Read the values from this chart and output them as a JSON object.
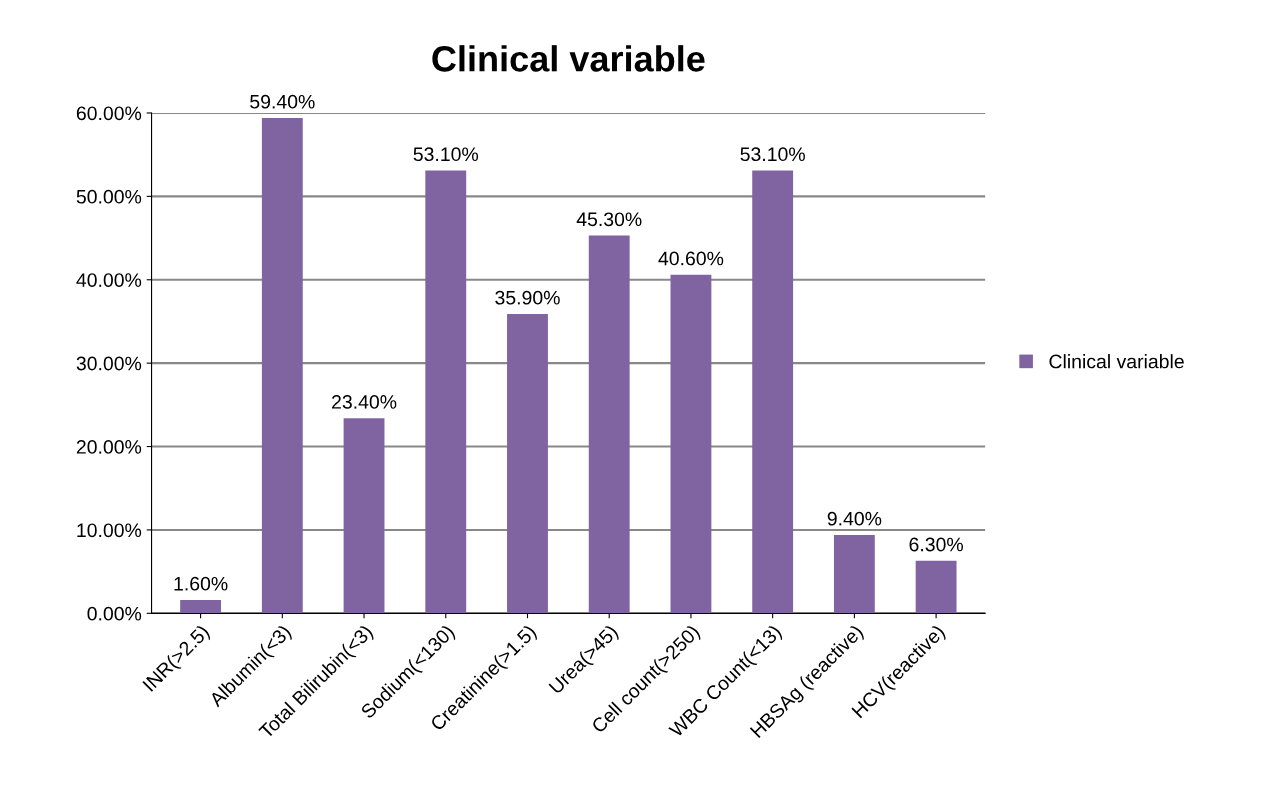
{
  "chart_data": {
    "type": "bar",
    "title": "Clinical variable",
    "categories": [
      "INR(>2.5)",
      "Albumin(<3)",
      "Total Bilirubin(<3)",
      "Sodium(<130)",
      "Creatinine(>1.5)",
      "Urea(>45)",
      "Cell count(>250)",
      "WBC Count(<13)",
      "HBSAg (reactive)",
      "HCV(reactive)"
    ],
    "series": [
      {
        "name": "Clinical variable",
        "color": "#8064a2",
        "values": [
          1.6,
          59.4,
          23.4,
          53.1,
          35.9,
          45.3,
          40.6,
          53.1,
          9.4,
          6.3
        ],
        "value_labels": [
          "1.60%",
          "59.40%",
          "23.40%",
          "53.10%",
          "35.90%",
          "45.30%",
          "40.60%",
          "53.10%",
          "9.40%",
          "6.30%"
        ]
      }
    ],
    "ylim": [
      0,
      60
    ],
    "yticks": [
      {
        "value": 0,
        "label": "0.00%"
      },
      {
        "value": 10,
        "label": "10.00%"
      },
      {
        "value": 20,
        "label": "20.00%"
      },
      {
        "value": 30,
        "label": "30.00%"
      },
      {
        "value": 40,
        "label": "40.00%"
      },
      {
        "value": 50,
        "label": "50.00%"
      },
      {
        "value": 60,
        "label": "60.00%"
      }
    ],
    "grid": "y",
    "legend": "right"
  }
}
